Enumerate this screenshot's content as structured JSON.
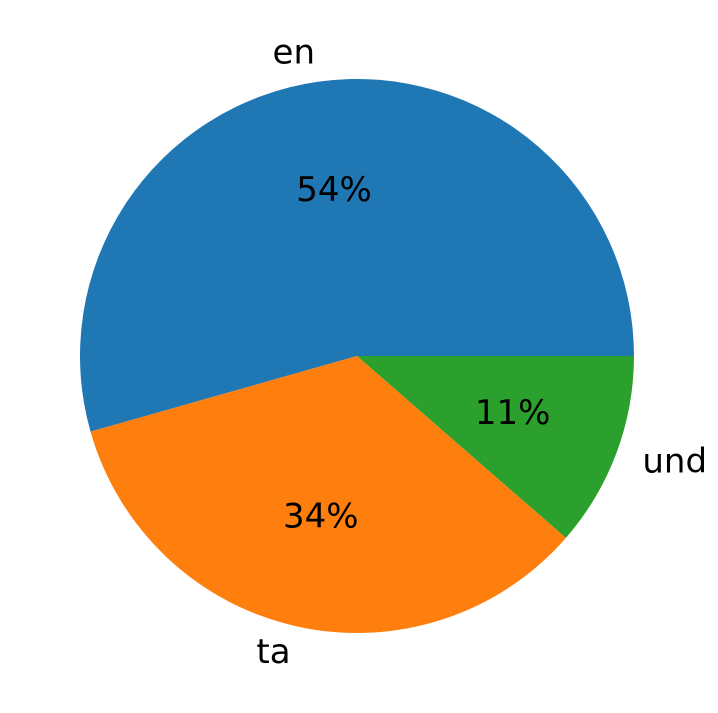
{
  "chart_data": {
    "type": "pie",
    "title": "",
    "labels": [
      "en",
      "ta",
      "und"
    ],
    "values": [
      54.4,
      34.2,
      11.4
    ],
    "pct_labels": [
      "54%",
      "34%",
      "11%"
    ],
    "colors": [
      "#1f77b4",
      "#ff7f0e",
      "#2ca02c"
    ],
    "start_angle_deg": 0,
    "direction": "counterclockwise",
    "legend": "none"
  }
}
